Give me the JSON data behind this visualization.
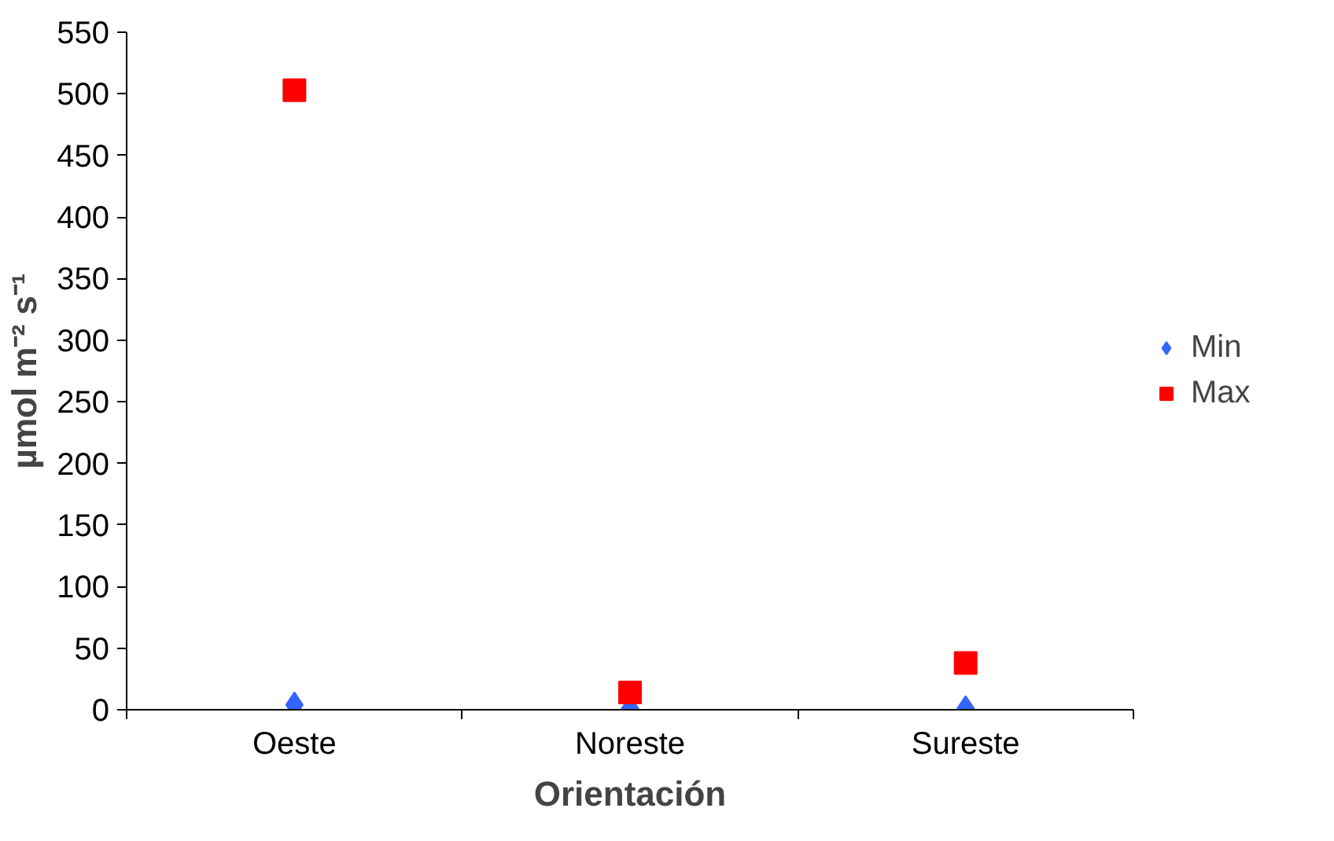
{
  "chart_data": {
    "type": "scatter",
    "xlabel": "Orientación",
    "ylabel": "µmol m⁻² s⁻¹",
    "categories": [
      "Oeste",
      "Noreste",
      "Sureste"
    ],
    "series": [
      {
        "name": "Min",
        "color": "#3366ff",
        "marker": "diamond",
        "values": [
          4,
          1,
          1
        ]
      },
      {
        "name": "Max",
        "color": "#ff0000",
        "marker": "square",
        "values": [
          503,
          14,
          38
        ]
      }
    ],
    "ylim": [
      0,
      550
    ],
    "yticks": [
      0,
      50,
      100,
      150,
      200,
      250,
      300,
      350,
      400,
      450,
      500,
      550
    ],
    "grid": false,
    "legend": "right"
  }
}
